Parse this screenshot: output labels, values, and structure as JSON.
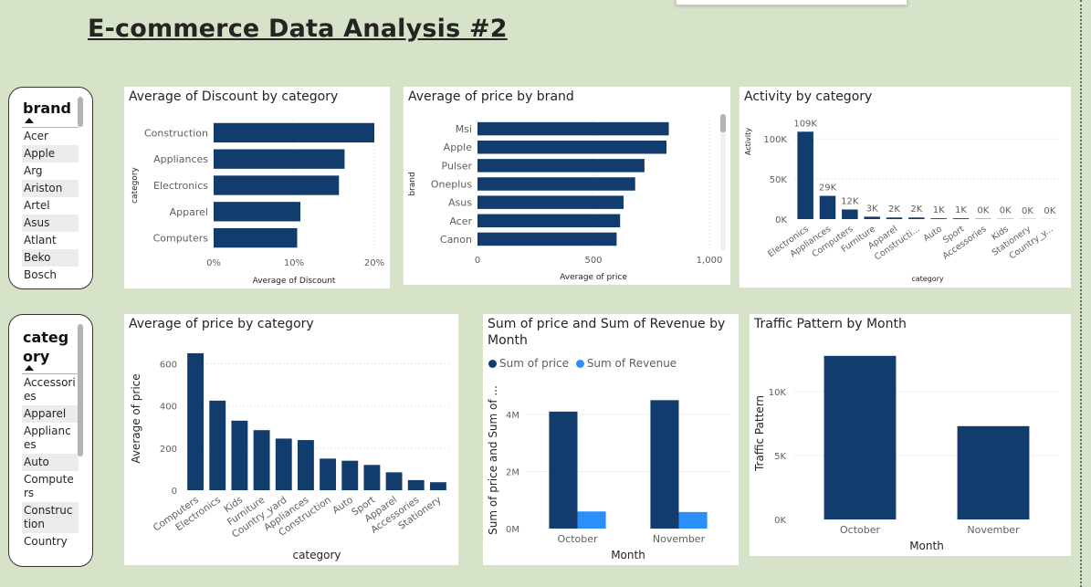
{
  "page_title": "E-commerce Data Analysis #2",
  "colors": {
    "primary": "#123c6e",
    "secondary": "#2b8ffa",
    "background": "#d6e3c9"
  },
  "slicers": [
    {
      "title": "brand",
      "items": [
        "Acer",
        "Apple",
        "Arg",
        "Ariston",
        "Artel",
        "Asus",
        "Atlant",
        "Beko",
        "Bosch"
      ]
    },
    {
      "title": "category",
      "items": [
        "Accessories",
        "Apparel",
        "Appliances",
        "Auto",
        "Computers",
        "Construction",
        "Country"
      ]
    }
  ],
  "chart_data": [
    {
      "id": "discount-by-category",
      "type": "bar",
      "orientation": "horizontal",
      "title": "Average of Discount by category",
      "xlabel": "Average of Discount",
      "ylabel": "category",
      "categories": [
        "Construction",
        "Appliances",
        "Electronics",
        "Apparel",
        "Computers"
      ],
      "values": [
        20,
        16.3,
        15.6,
        10.8,
        10.4
      ],
      "xlim": [
        0,
        20
      ],
      "ticks": [
        "0%",
        "10%",
        "20%"
      ]
    },
    {
      "id": "price-by-brand",
      "type": "bar",
      "orientation": "horizontal",
      "title": "Average of price by brand",
      "xlabel": "Average of price",
      "ylabel": "brand",
      "categories": [
        "Msi",
        "Apple",
        "Pulser",
        "Oneplus",
        "Asus",
        "Acer",
        "Canon"
      ],
      "values": [
        825,
        815,
        720,
        680,
        630,
        615,
        600
      ],
      "xlim": [
        0,
        1000
      ],
      "ticks": [
        "0",
        "500",
        "1,000"
      ]
    },
    {
      "id": "activity-by-category",
      "type": "bar",
      "title": "Activity by category",
      "xlabel": "category",
      "ylabel": "Activity",
      "categories": [
        "Electronics",
        "Appliances",
        "Computers",
        "Furniture",
        "Apparel",
        "Constructi...",
        "Auto",
        "Sport",
        "Accessories",
        "Kids",
        "Stationery",
        "Country_y..."
      ],
      "values": [
        109000,
        29000,
        12000,
        3000,
        2000,
        2000,
        1000,
        1000,
        400,
        300,
        200,
        100
      ],
      "data_labels": [
        "109K",
        "29K",
        "12K",
        "3K",
        "2K",
        "2K",
        "1K",
        "1K",
        "0K",
        "0K",
        "0K",
        "0K"
      ],
      "ylim": [
        0,
        115000
      ],
      "ticks": [
        "0K",
        "50K",
        "100K"
      ]
    },
    {
      "id": "price-by-category",
      "type": "bar",
      "title": "Average of price by category",
      "xlabel": "category",
      "ylabel": "Average of price",
      "categories": [
        "Computers",
        "Electronics",
        "Kids",
        "Furniture",
        "Country_yard",
        "Appliances",
        "Construction",
        "Auto",
        "Sport",
        "Apparel",
        "Accessories",
        "Stationery"
      ],
      "values": [
        650,
        425,
        330,
        285,
        245,
        238,
        150,
        140,
        120,
        85,
        48,
        38
      ],
      "ylim": [
        0,
        680
      ],
      "ticks": [
        "0",
        "200",
        "400",
        "600"
      ]
    },
    {
      "id": "price-revenue-by-month",
      "type": "bar",
      "title": "Sum of price and Sum of Revenue by Month",
      "xlabel": "Month",
      "ylabel": "Sum of price and Sum of ...",
      "categories": [
        "October",
        "November"
      ],
      "series": [
        {
          "name": "Sum of price",
          "values": [
            4100000,
            4500000
          ]
        },
        {
          "name": "Sum of Revenue",
          "values": [
            600000,
            580000
          ]
        }
      ],
      "ylim": [
        0,
        4800000
      ],
      "ticks": [
        "0M",
        "2M",
        "4M"
      ]
    },
    {
      "id": "traffic-by-month",
      "type": "bar",
      "title": "Traffic Pattern by Month",
      "xlabel": "Month",
      "ylabel": "Traffic Pattern",
      "categories": [
        "October",
        "November"
      ],
      "values": [
        12800,
        7300
      ],
      "ylim": [
        0,
        13500
      ],
      "ticks": [
        "0K",
        "5K",
        "10K"
      ]
    }
  ]
}
